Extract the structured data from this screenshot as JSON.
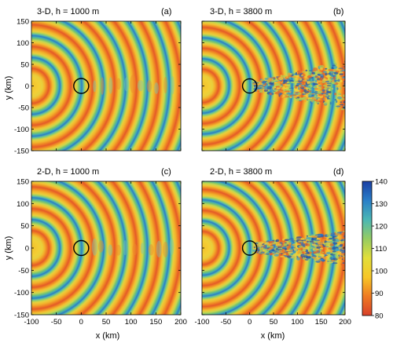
{
  "chart_data": [
    {
      "type": "heatmap",
      "title": "3-D,  h = 1000 m",
      "panel_label": "(a)",
      "xlabel": "",
      "ylabel": "y (km)",
      "xlim": [
        -100,
        200
      ],
      "ylim": [
        -150,
        150
      ],
      "xticks": [
        -100,
        -50,
        0,
        50,
        100,
        150,
        200
      ],
      "yticks": [
        150,
        100,
        50,
        0,
        -50,
        -100,
        -150
      ],
      "source_x": -100,
      "ring_spacing_km": 44,
      "circle": {
        "cx": 0,
        "cy": 0,
        "r": 15
      },
      "wake": "weak"
    },
    {
      "type": "heatmap",
      "title": "3-D,  h = 3800 m",
      "panel_label": "(b)",
      "xlabel": "",
      "ylabel": "",
      "xlim": [
        -100,
        200
      ],
      "ylim": [
        -150,
        150
      ],
      "xticks": [
        -100,
        -50,
        0,
        50,
        100,
        150,
        200
      ],
      "yticks": [
        150,
        100,
        50,
        0,
        -50,
        -100,
        -150
      ],
      "source_x": -100,
      "ring_spacing_km": 44,
      "circle": {
        "cx": 0,
        "cy": 0,
        "r": 15
      },
      "wake": "strong"
    },
    {
      "type": "heatmap",
      "title": "2-D,  h = 1000 m",
      "panel_label": "(c)",
      "xlabel": "x (km)",
      "ylabel": "y (km)",
      "xlim": [
        -100,
        200
      ],
      "ylim": [
        -150,
        150
      ],
      "xticks": [
        -100,
        -50,
        0,
        50,
        100,
        150,
        200
      ],
      "yticks": [
        150,
        100,
        50,
        0,
        -50,
        -100,
        -150
      ],
      "source_x": -100,
      "ring_spacing_km": 44,
      "circle": {
        "cx": 0,
        "cy": 0,
        "r": 15
      },
      "wake": "weak"
    },
    {
      "type": "heatmap",
      "title": "2-D,  h = 3800 m",
      "panel_label": "(d)",
      "xlabel": "x (km)",
      "ylabel": "",
      "xlim": [
        -100,
        200
      ],
      "ylim": [
        -150,
        150
      ],
      "xticks": [
        -100,
        -50,
        0,
        50,
        100,
        150,
        200
      ],
      "yticks": [
        150,
        100,
        50,
        0,
        -50,
        -100,
        -150
      ],
      "source_x": -100,
      "ring_spacing_km": 44,
      "circle": {
        "cx": 0,
        "cy": 0,
        "r": 15
      },
      "wake": "strong-narrow"
    }
  ],
  "colorbar": {
    "min": 80,
    "max": 140,
    "ticks": [
      140,
      130,
      120,
      110,
      100,
      90,
      80
    ],
    "colors": [
      "#d8402a",
      "#ef7a22",
      "#f7c727",
      "#e2de3a",
      "#96cc62",
      "#4bb7b4",
      "#2a7fc8",
      "#1a3fa4"
    ]
  }
}
